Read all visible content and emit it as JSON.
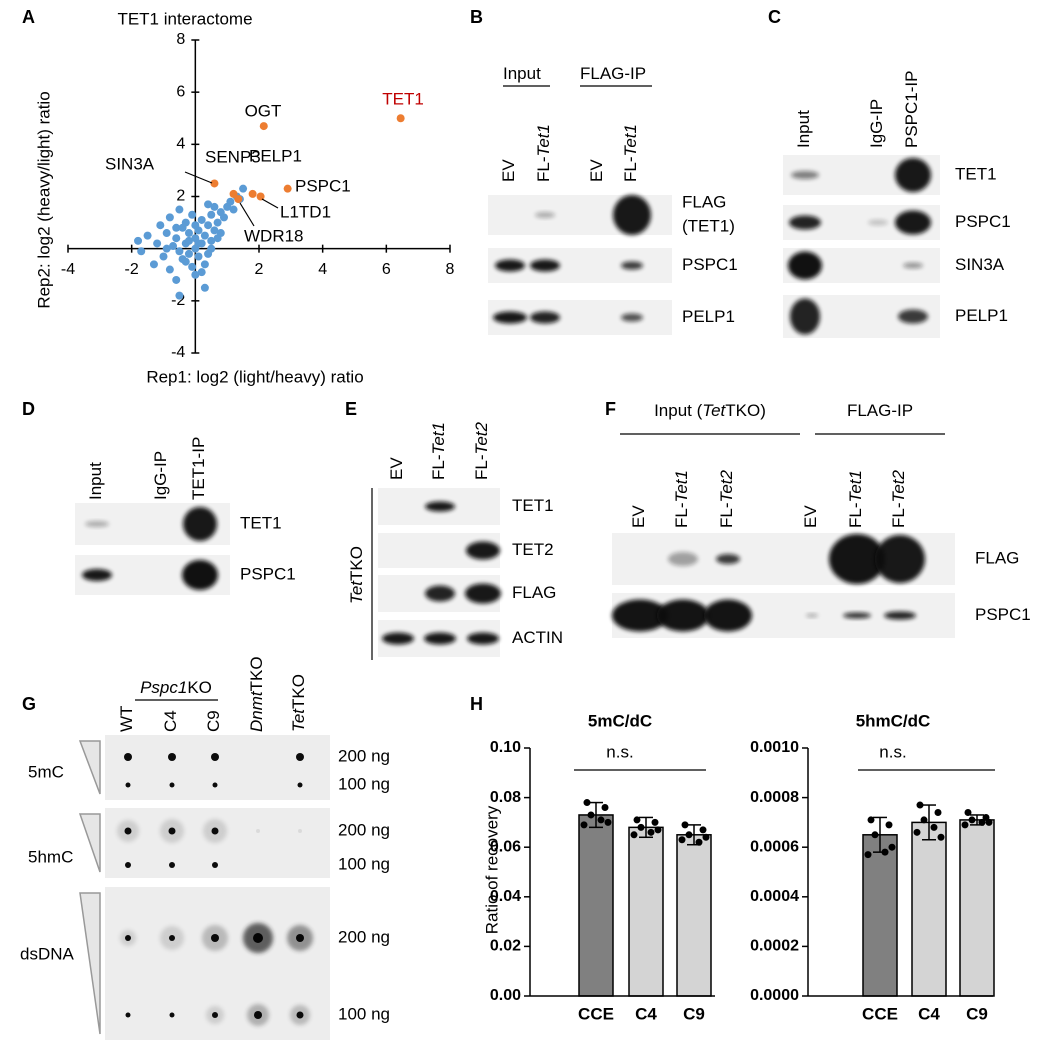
{
  "panel_letters": [
    "A",
    "B",
    "C",
    "D",
    "E",
    "F",
    "G",
    "H"
  ],
  "chart_data": [
    {
      "type": "scatter",
      "title": "TET1 interactome",
      "x_label": "Rep1: log2 (light/heavy) ratio",
      "y_label": "Rep2: log2 (heavy/light) ratio",
      "xlim": [
        -4,
        8
      ],
      "ylim": [
        -4,
        8
      ],
      "xticks": [
        -4,
        -2,
        2,
        4,
        6,
        8
      ],
      "yticks": [
        -4,
        -2,
        2,
        4,
        6,
        8
      ],
      "series": [
        {
          "color": "#5b9bd5",
          "x": [
            -1.8,
            -1.7,
            -1.5,
            -1.3,
            -1.2,
            -1.1,
            -1.0,
            -0.9,
            -0.8,
            -0.8,
            -0.7,
            -0.6,
            -0.6,
            -0.5,
            -0.5,
            -0.4,
            -0.4,
            -0.3,
            -0.3,
            -0.2,
            -0.2,
            -0.1,
            -0.1,
            0,
            0,
            0,
            0.1,
            0.1,
            0.2,
            0.2,
            0.3,
            0.3,
            0.4,
            0.4,
            0.5,
            0.5,
            0.6,
            0.6,
            0.7,
            0.7,
            0.8,
            0.9,
            1.0,
            1.1,
            1.2,
            1.3,
            1.4,
            1.5,
            -0.5,
            0.3,
            -0.2,
            0.0,
            0.5,
            -0.9,
            0.2,
            -0.3,
            0.8,
            0.1,
            -0.6,
            0.4
          ],
          "values": [
            0.3,
            -0.1,
            0.5,
            -0.6,
            0.2,
            0.9,
            -0.3,
            0.6,
            1.2,
            -0.8,
            0.1,
            0.4,
            -1.2,
            1.5,
            -1.8,
            0.8,
            -0.4,
            0.2,
            1.0,
            -0.2,
            0.6,
            -0.7,
            1.3,
            0.0,
            0.4,
            -1.0,
            0.7,
            -0.3,
            1.1,
            0.2,
            -1.5,
            0.5,
            0.9,
            -0.2,
            1.3,
            0.3,
            0.7,
            1.6,
            1.0,
            0.4,
            1.4,
            1.2,
            1.6,
            1.8,
            1.5,
            2.0,
            1.9,
            2.3,
            -0.1,
            -0.6,
            0.3,
            0.9,
            0.0,
            0.0,
            -0.9,
            -0.5,
            0.6,
            0.2,
            0.8,
            1.7
          ]
        },
        {
          "color": "#ed7d31",
          "x": [
            6.45,
            2.15,
            0.6,
            1.2,
            1.8,
            2.9,
            2.05,
            1.35
          ],
          "values": [
            5.0,
            4.7,
            2.5,
            2.1,
            2.1,
            2.3,
            2.0,
            1.9
          ],
          "labels": [
            "TET1",
            "OGT",
            "SIN3A",
            "SENP3",
            "PELP1",
            "PSPC1",
            "L1TD1",
            "WDR18"
          ],
          "label_colors": [
            "#c00000",
            "#000000",
            "#000000",
            "#000000",
            "#000000",
            "#000000",
            "#000000",
            "#000000"
          ]
        }
      ]
    },
    {
      "type": "bar",
      "title": "5mC/dC",
      "y_label": "Ratio of recovery",
      "annotation": "n.s.",
      "categories": [
        "CCE",
        "C4",
        "C9"
      ],
      "values": [
        0.073,
        0.068,
        0.065
      ],
      "errors": [
        0.005,
        0.004,
        0.004
      ],
      "points": [
        [
          0.078,
          0.076,
          0.073,
          0.071,
          0.069,
          0.07
        ],
        [
          0.071,
          0.07,
          0.068,
          0.066,
          0.065,
          0.067
        ],
        [
          0.069,
          0.067,
          0.065,
          0.062,
          0.063,
          0.064
        ]
      ],
      "colors": [
        "#808080",
        "#d4d4d4",
        "#d4d4d4"
      ],
      "ylim": [
        0,
        0.1
      ],
      "yticks": [
        {
          "value": 0,
          "label": "0.00"
        },
        0.02,
        0.04,
        0.06,
        0.08,
        {
          "value": 0.1,
          "label": "0.10"
        }
      ]
    },
    {
      "type": "bar",
      "title": "5hmC/dC",
      "annotation": "n.s.",
      "categories": [
        "CCE",
        "C4",
        "C9"
      ],
      "values": [
        0.00065,
        0.0007,
        0.00071
      ],
      "errors": [
        7e-05,
        7e-05,
        2e-05
      ],
      "points": [
        [
          0.00071,
          0.00069,
          0.00065,
          0.00058,
          0.00057,
          0.0006
        ],
        [
          0.00077,
          0.00074,
          0.00071,
          0.00068,
          0.00066,
          0.00064
        ],
        [
          0.00074,
          0.00072,
          0.00071,
          0.0007,
          0.00069,
          0.0007
        ]
      ],
      "colors": [
        "#808080",
        "#d4d4d4",
        "#d4d4d4"
      ],
      "ylim": [
        0,
        0.001
      ],
      "yticks": [
        {
          "value": 0,
          "label": "0.0000"
        },
        0.0002,
        0.0004,
        0.0006,
        0.0008,
        {
          "value": 0.001,
          "label": "0.0010"
        }
      ]
    }
  ],
  "blot_b": {
    "groups": [
      [
        "Input"
      ],
      [
        "FLAG-IP"
      ]
    ],
    "lanes": [
      [
        "EV"
      ],
      [
        "FL-",
        "Tet1"
      ],
      [
        "EV"
      ],
      [
        "FL-",
        "Tet1"
      ]
    ],
    "rows": [
      [
        "FLAG",
        "(TET1)"
      ],
      [
        "PSPC1"
      ],
      [
        "PELP1"
      ]
    ]
  },
  "blot_c": {
    "lanes": [
      [
        "Input"
      ],
      [
        "IgG-IP"
      ],
      [
        "PSPC1-IP"
      ]
    ],
    "rows": [
      [
        "TET1"
      ],
      [
        "PSPC1"
      ],
      [
        "SIN3A"
      ],
      [
        "PELP1"
      ]
    ]
  },
  "blot_d": {
    "lanes": [
      [
        "Input"
      ],
      [
        "IgG-IP"
      ],
      [
        "TET1-IP"
      ]
    ],
    "rows": [
      [
        "TET1"
      ],
      [
        "PSPC1"
      ]
    ]
  },
  "blot_e": {
    "side_label": [
      "Tet",
      "TKO"
    ],
    "lanes": [
      [
        "EV"
      ],
      [
        "FL-",
        "Tet1"
      ],
      [
        "FL-",
        "Tet2"
      ]
    ],
    "rows": [
      [
        "TET1"
      ],
      [
        "TET2"
      ],
      [
        "FLAG"
      ],
      [
        "ACTIN"
      ]
    ]
  },
  "blot_f": {
    "groups": [
      [
        "Input (",
        "Tet",
        "TKO)"
      ],
      [
        "FLAG-IP"
      ]
    ],
    "lanes": [
      [
        "EV"
      ],
      [
        "FL-",
        "Tet1"
      ],
      [
        "FL-",
        "Tet2"
      ],
      [
        "EV"
      ],
      [
        "FL-",
        "Tet1"
      ],
      [
        "FL-",
        "Tet2"
      ]
    ],
    "rows": [
      [
        "FLAG"
      ],
      [
        "PSPC1"
      ]
    ]
  },
  "dot_blot": {
    "group_label": [
      "Pspc1",
      "KO"
    ],
    "columns": [
      [
        "WT"
      ],
      [
        "C4"
      ],
      [
        "C9"
      ],
      [
        "Dnmt",
        "TKO"
      ],
      [
        "Tet",
        "TKO"
      ]
    ],
    "membranes": [
      {
        "name": "5mC",
        "rows": [
          "200 ng",
          "100 ng"
        ]
      },
      {
        "name": "5hmC",
        "rows": [
          "200 ng",
          "100 ng"
        ]
      },
      {
        "name": "dsDNA",
        "rows": [
          "200 ng",
          "100 ng"
        ]
      }
    ]
  }
}
